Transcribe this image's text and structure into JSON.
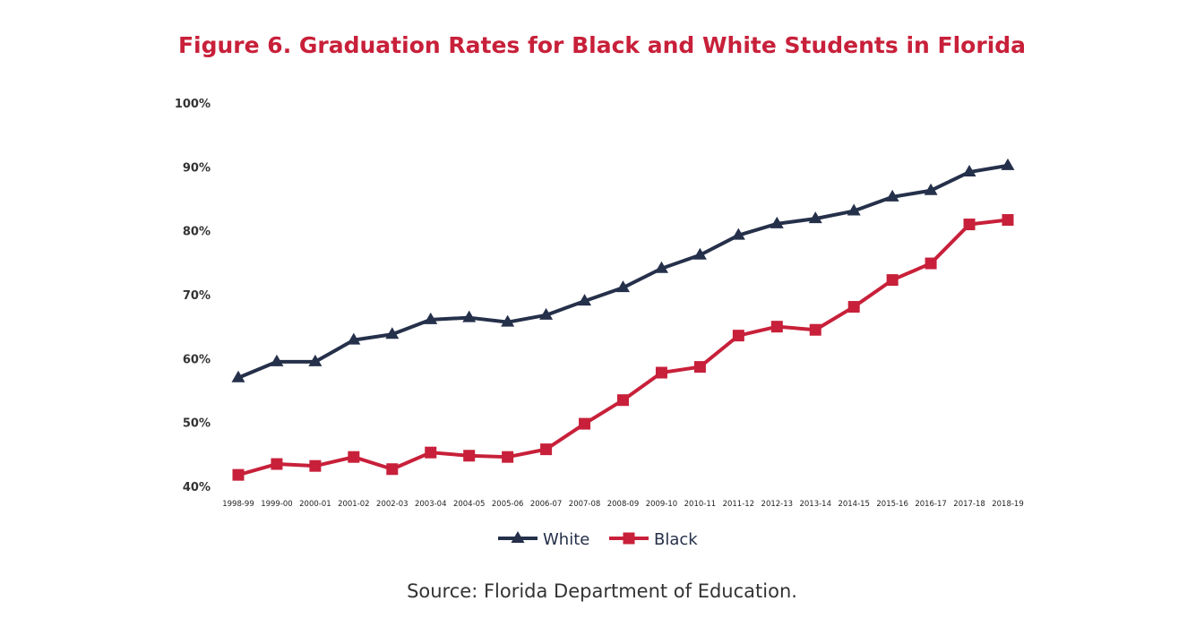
{
  "chart_data": {
    "type": "line",
    "title": "Figure 6. Graduation Rates for Black and White Students in Florida",
    "source": "Source: Florida Department of Education.",
    "xlabel": "",
    "ylabel": "",
    "categories": [
      "1998-99",
      "1999-00",
      "2000-01",
      "2001-02",
      "2002-03",
      "2003-04",
      "2004-05",
      "2005-06",
      "2006-07",
      "2007-08",
      "2008-09",
      "2009-10",
      "2010-11",
      "2011-12",
      "2012-13",
      "2013-14",
      "2014-15",
      "2015-16",
      "2016-17",
      "2017-18",
      "2018-19"
    ],
    "yticks": [
      "40%",
      "50%",
      "60%",
      "70%",
      "80%",
      "90%",
      "100%"
    ],
    "ylim": [
      40,
      100
    ],
    "grid": false,
    "legend_position": "bottom",
    "series": [
      {
        "name": "White",
        "color": "#25304a",
        "marker": "triangle",
        "values": [
          57.0,
          59.5,
          59.5,
          62.9,
          63.8,
          66.1,
          66.4,
          65.7,
          66.8,
          69.0,
          71.1,
          74.1,
          76.2,
          79.3,
          81.1,
          81.9,
          83.1,
          85.3,
          86.3,
          89.2,
          90.2
        ]
      },
      {
        "name": "Black",
        "color": "#c8203a",
        "marker": "square",
        "values": [
          41.8,
          43.5,
          43.2,
          44.6,
          42.7,
          45.3,
          44.8,
          44.6,
          45.8,
          49.8,
          53.5,
          57.8,
          58.7,
          63.6,
          65.0,
          64.5,
          68.1,
          72.3,
          74.9,
          81.0,
          81.7
        ]
      }
    ]
  }
}
